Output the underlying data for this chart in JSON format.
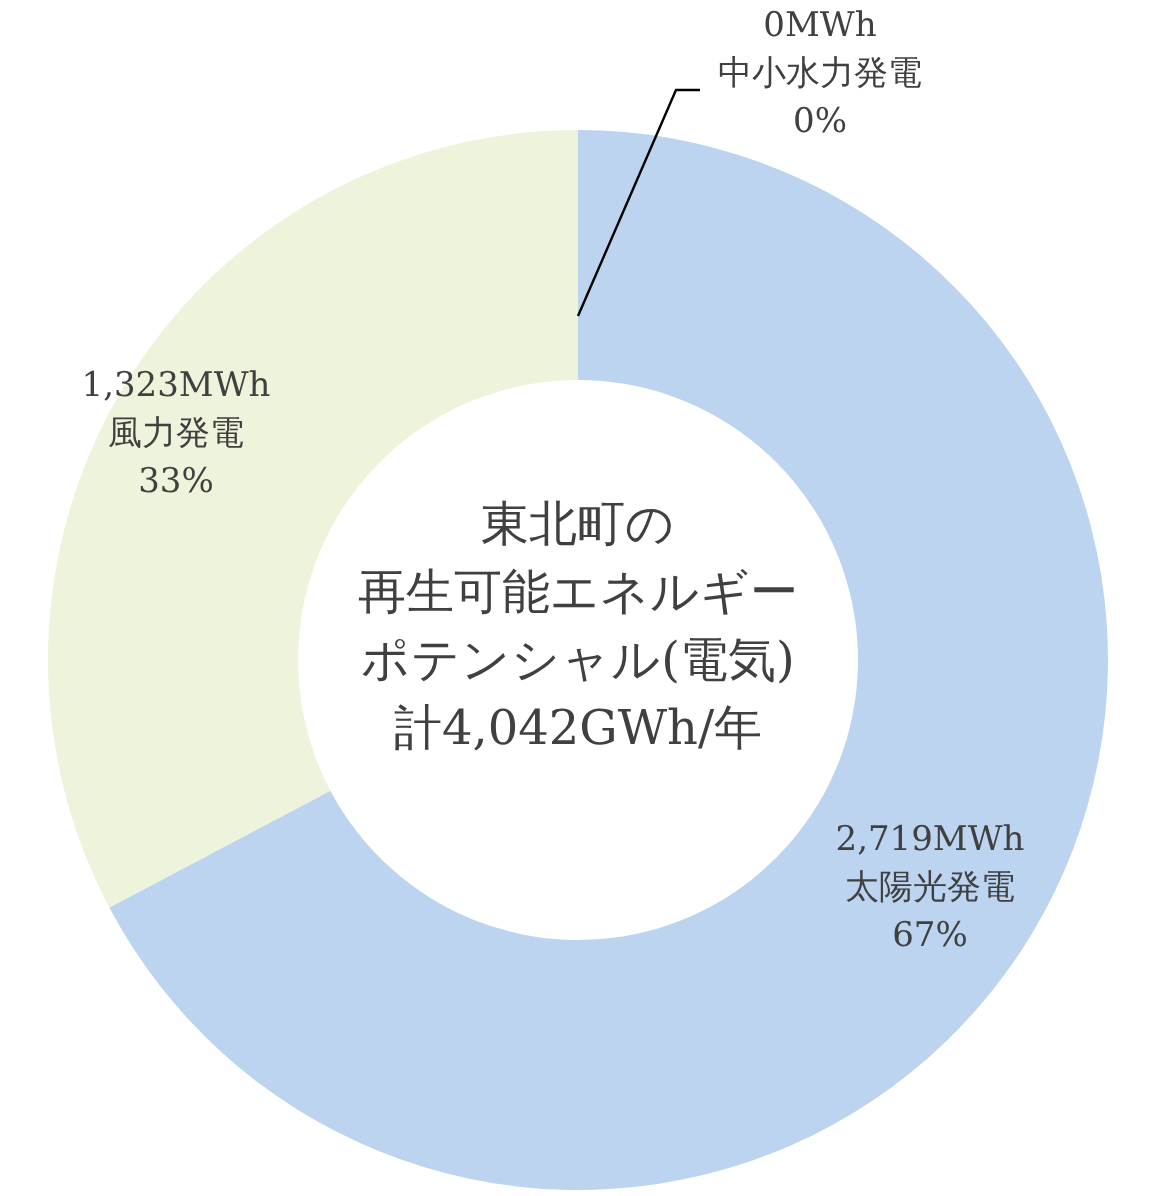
{
  "chart_data": {
    "type": "donut",
    "title": "東北町の再生可能エネルギーポテンシャル(電気)",
    "subtitle": "計4,042GWh/年",
    "categories": [
      "太陽光発電",
      "風力発電",
      "中小水力発電"
    ],
    "values": [
      2719,
      1323,
      0
    ],
    "value_labels": [
      "2,719MWh",
      "1,323MWh",
      "0MWh"
    ],
    "annotations": [
      "67%",
      "33%",
      "0%"
    ],
    "colors": [
      "#bcd4f0",
      "#eef3dc",
      "#9fc6e8"
    ]
  }
}
